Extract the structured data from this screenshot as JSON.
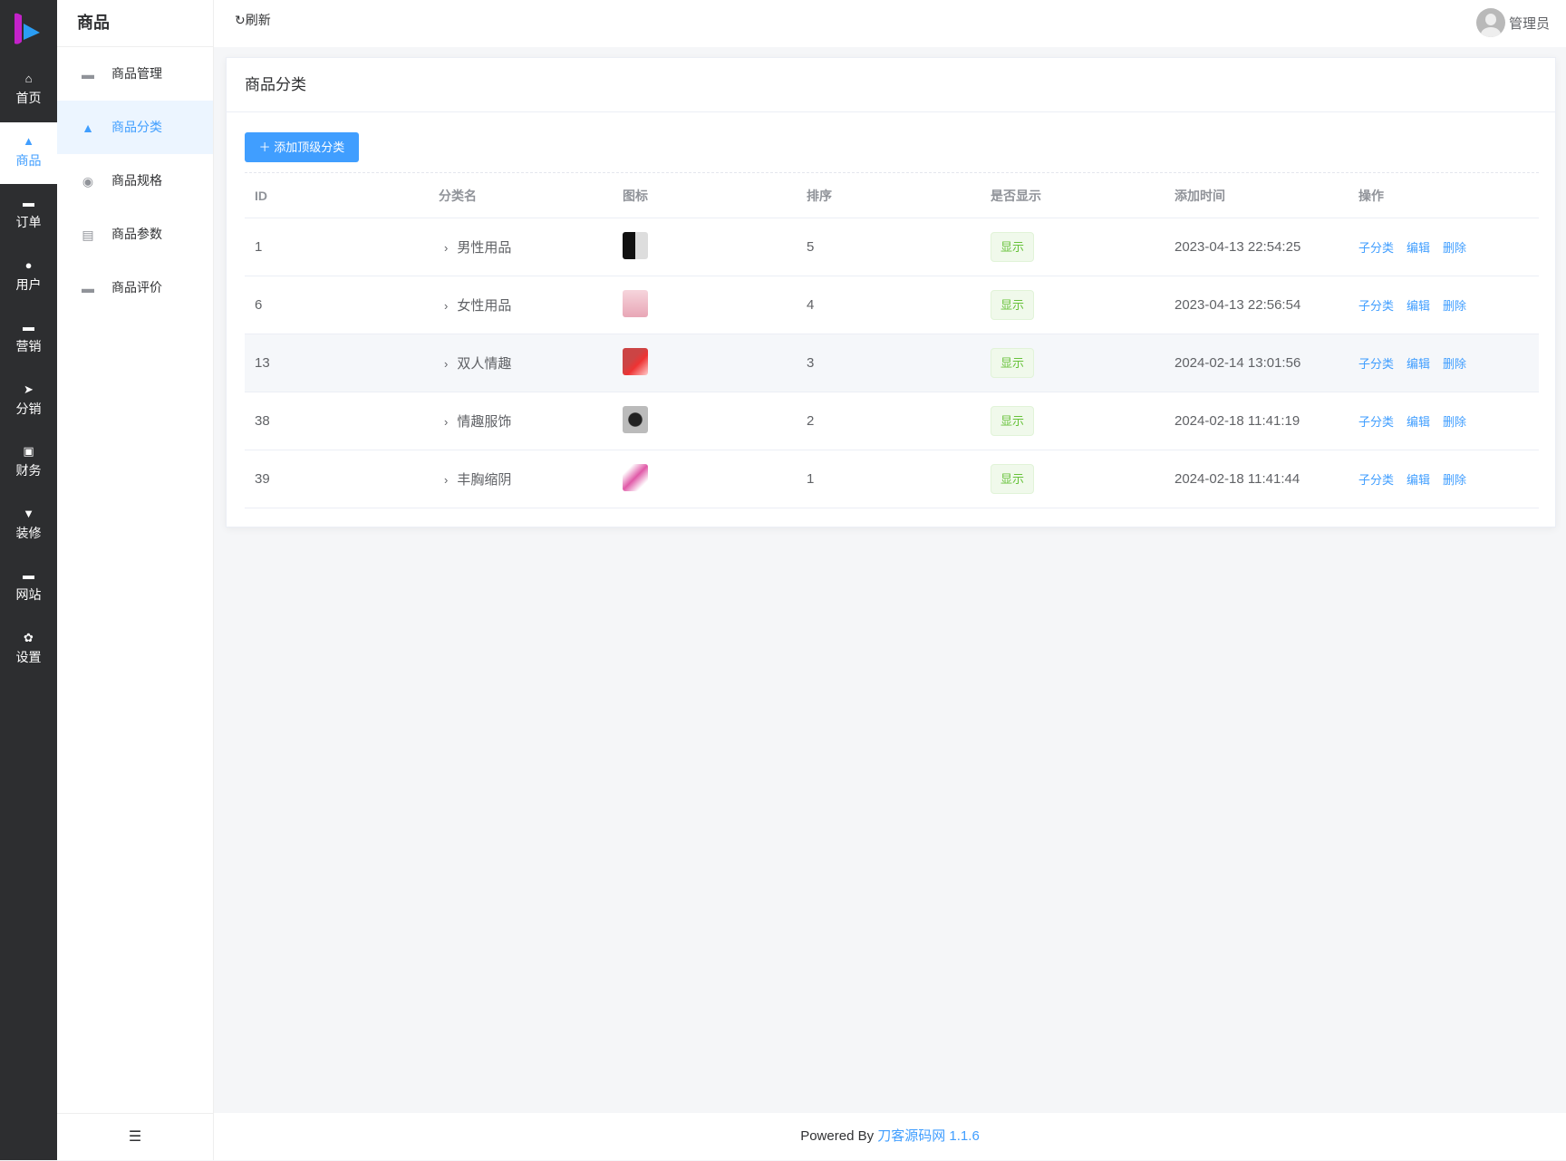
{
  "rail": [
    {
      "label": "首页",
      "icon": "home-icon"
    },
    {
      "label": "商品",
      "icon": "bag-icon",
      "active": true
    },
    {
      "label": "订单",
      "icon": "wallet-icon"
    },
    {
      "label": "用户",
      "icon": "user-icon"
    },
    {
      "label": "营销",
      "icon": "ticket-icon"
    },
    {
      "label": "分销",
      "icon": "send-icon"
    },
    {
      "label": "财务",
      "icon": "money-icon"
    },
    {
      "label": "装修",
      "icon": "brush-icon"
    },
    {
      "label": "网站",
      "icon": "monitor-icon"
    },
    {
      "label": "设置",
      "icon": "gear-icon"
    }
  ],
  "sub": {
    "title": "商品",
    "items": [
      {
        "label": "商品管理",
        "icon": "briefcase-icon"
      },
      {
        "label": "商品分类",
        "icon": "bag-icon",
        "active": true
      },
      {
        "label": "商品规格",
        "icon": "lifebuoy-icon"
      },
      {
        "label": "商品参数",
        "icon": "clipboard-check-icon"
      },
      {
        "label": "商品评价",
        "icon": "comment-icon"
      }
    ]
  },
  "topbar": {
    "refresh": "刷新",
    "user": "管理员"
  },
  "card": {
    "title": "商品分类",
    "add_button": "添加顶级分类"
  },
  "table": {
    "headers": [
      "ID",
      "分类名",
      "图标",
      "排序",
      "是否显示",
      "添加时间",
      "操作"
    ],
    "rows": [
      {
        "id": "1",
        "name": "男性用品",
        "sort": "5",
        "show": "显示",
        "time": "2023-04-13 22:54:25"
      },
      {
        "id": "6",
        "name": "女性用品",
        "sort": "4",
        "show": "显示",
        "time": "2023-04-13 22:56:54"
      },
      {
        "id": "13",
        "name": "双人情趣",
        "sort": "3",
        "show": "显示",
        "time": "2024-02-14 13:01:56"
      },
      {
        "id": "38",
        "name": "情趣服饰",
        "sort": "2",
        "show": "显示",
        "time": "2024-02-18 11:41:19"
      },
      {
        "id": "39",
        "name": "丰胸缩阴",
        "sort": "1",
        "show": "显示",
        "time": "2024-02-18 11:41:44"
      }
    ],
    "ops": [
      "子分类",
      "编辑",
      "删除"
    ]
  },
  "footer": {
    "prefix": "Powered By",
    "link": "刀客源码网 1.1.6"
  },
  "colors": {
    "primary": "#409eff",
    "rail": "#2d2e30",
    "success": "#67c23a"
  }
}
